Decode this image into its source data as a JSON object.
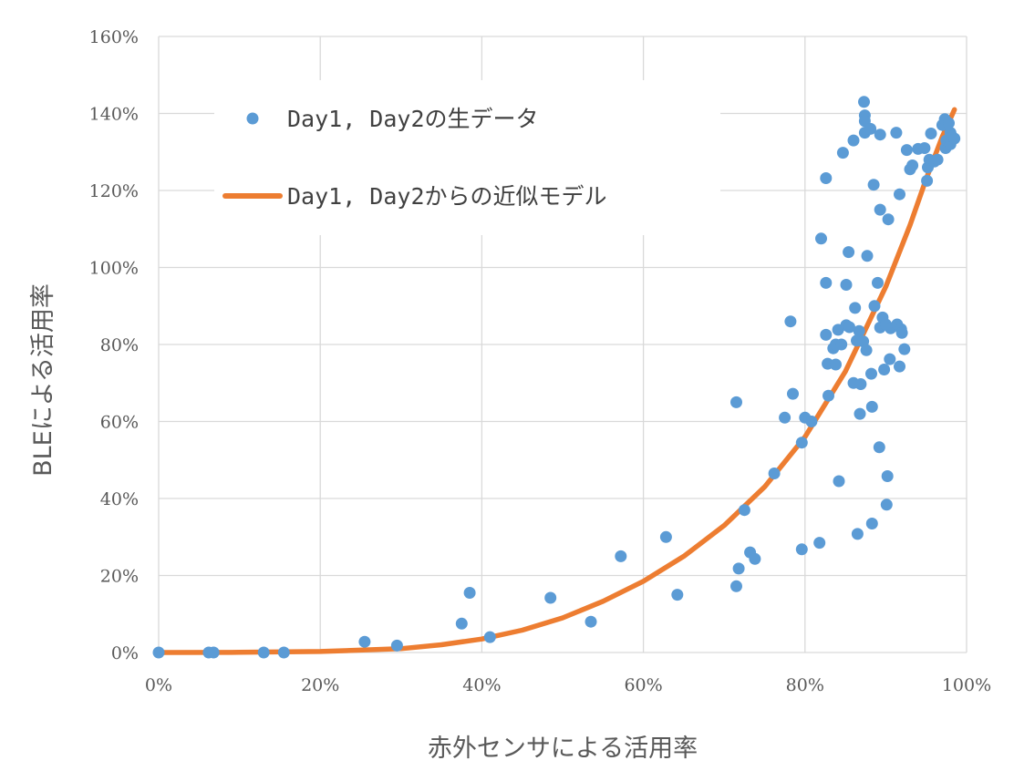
{
  "chart_data": {
    "type": "scatter",
    "xlabel": "赤外センサによる活用率",
    "ylabel": "BLEによる活用率",
    "xlim": [
      0,
      100
    ],
    "ylim": [
      0,
      160
    ],
    "x_ticks": [
      "0%",
      "20%",
      "40%",
      "60%",
      "80%",
      "100%"
    ],
    "y_ticks": [
      "0%",
      "20%",
      "40%",
      "60%",
      "80%",
      "100%",
      "120%",
      "140%",
      "160%"
    ],
    "grid": true,
    "legend_position": "top-left",
    "colors": {
      "scatter": "#5b9bd5",
      "model": "#ed7d31",
      "grid": "#d9d9d9"
    },
    "series": [
      {
        "name": "Day1, Day2の生データ",
        "kind": "scatter",
        "points": [
          [
            0,
            0
          ],
          [
            6.2,
            0
          ],
          [
            6.8,
            0
          ],
          [
            13,
            0
          ],
          [
            15.5,
            0
          ],
          [
            25.5,
            2.8
          ],
          [
            29.5,
            1.8
          ],
          [
            37.5,
            7.5
          ],
          [
            38.5,
            15.5
          ],
          [
            41,
            4
          ],
          [
            48.5,
            14.2
          ],
          [
            53.5,
            8
          ],
          [
            57.2,
            25
          ],
          [
            62.8,
            30
          ],
          [
            64.2,
            15
          ],
          [
            71.5,
            65
          ],
          [
            71.5,
            17.2
          ],
          [
            71.8,
            21.8
          ],
          [
            72.5,
            37
          ],
          [
            73.2,
            26
          ],
          [
            73.8,
            24.3
          ],
          [
            76.2,
            46.5
          ],
          [
            77.5,
            61
          ],
          [
            78.2,
            86
          ],
          [
            78.5,
            67.2
          ],
          [
            79.6,
            54.5
          ],
          [
            79.6,
            26.8
          ],
          [
            80,
            61
          ],
          [
            80.8,
            60
          ],
          [
            81.8,
            28.5
          ],
          [
            82,
            107.5
          ],
          [
            82.6,
            123.2
          ],
          [
            82.6,
            96
          ],
          [
            82.6,
            82.5
          ],
          [
            82.8,
            75
          ],
          [
            82.9,
            66.7
          ],
          [
            83.5,
            79
          ],
          [
            83.8,
            80
          ],
          [
            83.8,
            74.8
          ],
          [
            84.1,
            83.8
          ],
          [
            84.2,
            44.5
          ],
          [
            84.5,
            80
          ],
          [
            84.7,
            129.8
          ],
          [
            85.1,
            95.5
          ],
          [
            85.1,
            85
          ],
          [
            85.4,
            104
          ],
          [
            85.5,
            84.5
          ],
          [
            86,
            133
          ],
          [
            86,
            70
          ],
          [
            86.2,
            89.5
          ],
          [
            86.4,
            81
          ],
          [
            86.5,
            30.8
          ],
          [
            86.7,
            83.5
          ],
          [
            86.8,
            62
          ],
          [
            86.9,
            69.7
          ],
          [
            87.2,
            80.8
          ],
          [
            87.3,
            143
          ],
          [
            87.4,
            139.5
          ],
          [
            87.4,
            138
          ],
          [
            87.4,
            135
          ],
          [
            87.6,
            78.5
          ],
          [
            87.7,
            103
          ],
          [
            88.1,
            136
          ],
          [
            88.2,
            72.4
          ],
          [
            88.3,
            63.8
          ],
          [
            88.3,
            33.5
          ],
          [
            88.5,
            121.5
          ],
          [
            88.6,
            90
          ],
          [
            89,
            96
          ],
          [
            89.2,
            53.3
          ],
          [
            89.3,
            134.5
          ],
          [
            89.3,
            115
          ],
          [
            89.3,
            84.4
          ],
          [
            89.6,
            87
          ],
          [
            89.8,
            73.5
          ],
          [
            90,
            85.2
          ],
          [
            90.1,
            38.4
          ],
          [
            90.2,
            45.8
          ],
          [
            90.3,
            112.5
          ],
          [
            90.5,
            76.2
          ],
          [
            90.6,
            84.2
          ],
          [
            91.3,
            135
          ],
          [
            91.4,
            85.2
          ],
          [
            91.7,
            119
          ],
          [
            91.7,
            74.3
          ],
          [
            91.9,
            84
          ],
          [
            92,
            83
          ],
          [
            92.3,
            78.8
          ],
          [
            92.6,
            130.5
          ],
          [
            93,
            125.5
          ],
          [
            93.3,
            126.5
          ],
          [
            94,
            130.8
          ],
          [
            94.8,
            131
          ],
          [
            95.1,
            122.5
          ],
          [
            95.2,
            126
          ],
          [
            95.4,
            128
          ],
          [
            95.6,
            134.8
          ],
          [
            96,
            127.5
          ],
          [
            96.4,
            128
          ],
          [
            97,
            137
          ],
          [
            97.3,
            138.5
          ],
          [
            97.4,
            131
          ],
          [
            97.5,
            133
          ],
          [
            97.8,
            137.5
          ],
          [
            98,
            132
          ],
          [
            98,
            135
          ],
          [
            98.2,
            134
          ],
          [
            98.5,
            133.5
          ]
        ]
      },
      {
        "name": "Day1, Day2からの近似モデル",
        "kind": "line",
        "points": [
          [
            0,
            0
          ],
          [
            10,
            0.05
          ],
          [
            20,
            0.25
          ],
          [
            30,
            1
          ],
          [
            35,
            2
          ],
          [
            40,
            3.5
          ],
          [
            45,
            5.8
          ],
          [
            50,
            9
          ],
          [
            55,
            13.3
          ],
          [
            60,
            18.5
          ],
          [
            65,
            25
          ],
          [
            70,
            33
          ],
          [
            75,
            43
          ],
          [
            80,
            56
          ],
          [
            85,
            73
          ],
          [
            90,
            95
          ],
          [
            93,
            111
          ],
          [
            95,
            123
          ],
          [
            97,
            134
          ],
          [
            98.5,
            141
          ]
        ]
      }
    ]
  }
}
